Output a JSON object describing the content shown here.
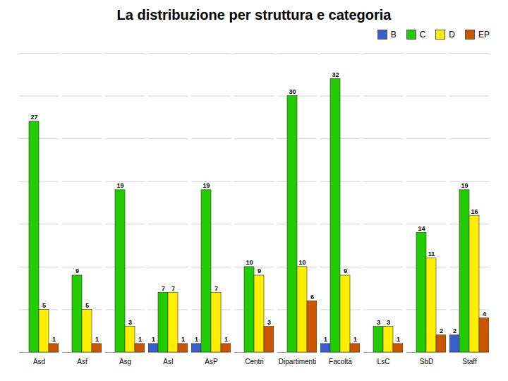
{
  "chart_data": {
    "type": "bar",
    "title": "La distribuzione per struttura e categoria",
    "categories": [
      "Asd",
      "Asf",
      "Asg",
      "AsI",
      "AsP",
      "Centri",
      "Dipartimenti",
      "Facoltà",
      "LsC",
      "SbD",
      "Staff"
    ],
    "series": [
      {
        "name": "B",
        "color": "#3a5fcd",
        "values": [
          0,
          0,
          0,
          1,
          1,
          0,
          0,
          1,
          0,
          0,
          2
        ]
      },
      {
        "name": "C",
        "color": "#22cc00",
        "values": [
          27,
          9,
          19,
          7,
          19,
          10,
          30,
          32,
          3,
          14,
          19
        ]
      },
      {
        "name": "D",
        "color": "#ffee00",
        "values": [
          5,
          5,
          3,
          7,
          7,
          9,
          10,
          9,
          3,
          11,
          16
        ]
      },
      {
        "name": "EP",
        "color": "#cc5500",
        "values": [
          1,
          1,
          1,
          1,
          1,
          3,
          6,
          1,
          1,
          2,
          4
        ]
      }
    ],
    "ylim": [
      0,
      35
    ],
    "yticks": [
      0,
      5,
      10,
      15,
      20,
      25,
      30,
      35
    ],
    "grid": true,
    "legend": "upper right",
    "data_labels": true,
    "tick_labels": "x"
  }
}
